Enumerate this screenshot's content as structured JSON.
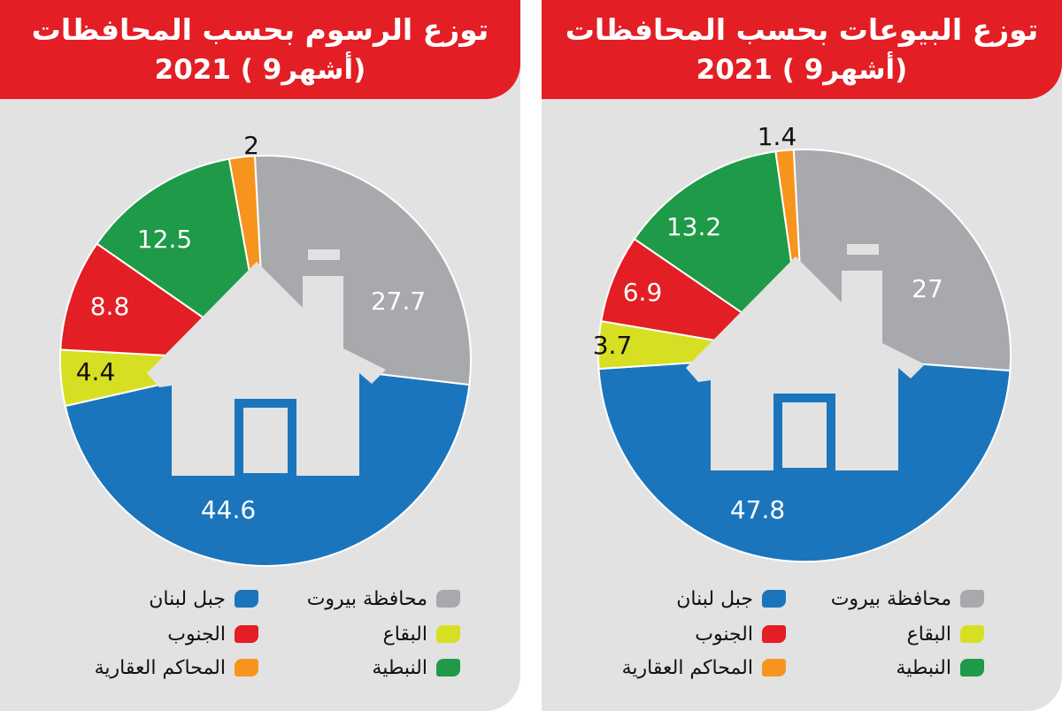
{
  "colors": {
    "beirut": "#a7a9ac",
    "mount_lebanon": "#1b75bc",
    "bekaa": "#d7df23",
    "south": "#e31e24",
    "nabatieh": "#1e9a48",
    "courts": "#f7941d"
  },
  "panels": [
    {
      "title_line1": "توزع الرسوم بحسب المحافظات",
      "title_line2": "2021 ( 9أشهر)"
    },
    {
      "title_line1": "توزع البيوعات بحسب المحافظات",
      "title_line2": "2021 ( 9أشهر)"
    }
  ],
  "legend": {
    "beirut": "محافظة بيروت",
    "mount_lebanon": "جبل لبنان",
    "bekaa": "البقاع",
    "south": "الجنوب",
    "nabatieh": "النبطية",
    "courts": "المحاكم العقارية"
  },
  "chart_data": [
    {
      "type": "pie",
      "title": "توزع الرسوم بحسب المحافظات 2021 ( 9أشهر)",
      "categories": [
        "محافظة بيروت",
        "جبل لبنان",
        "البقاع",
        "الجنوب",
        "النبطية",
        "المحاكم العقارية"
      ],
      "values": [
        27.7,
        44.6,
        4.4,
        8.8,
        12.5,
        2
      ],
      "labels": [
        "27.7",
        "44.6",
        "4.4",
        "8.8",
        "12.5",
        "2"
      ],
      "legend_position": "bottom"
    },
    {
      "type": "pie",
      "title": "توزع البيوعات بحسب المحافظات 2021 ( 9أشهر)",
      "categories": [
        "محافظة بيروت",
        "جبل لبنان",
        "البقاع",
        "الجنوب",
        "النبطية",
        "المحاكم العقارية"
      ],
      "values": [
        27,
        47.8,
        3.7,
        6.9,
        13.2,
        1.4
      ],
      "labels": [
        "27",
        "47.8",
        "3.7",
        "6.9",
        "13.2",
        "1.4"
      ],
      "legend_position": "bottom"
    }
  ]
}
